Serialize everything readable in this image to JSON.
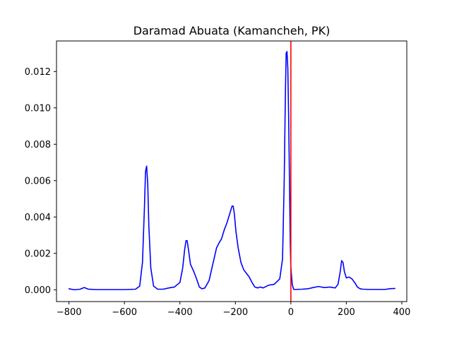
{
  "chart_data": {
    "type": "line",
    "title": "Daramad Abuata (Kamancheh, PK)",
    "xlabel": "",
    "ylabel": "",
    "xlim": [
      -845,
      418
    ],
    "ylim": [
      -0.00065,
      0.01368
    ],
    "grid": false,
    "x_ticks": [
      -800,
      -600,
      -400,
      -200,
      0,
      200,
      400
    ],
    "x_tick_labels": [
      "−800",
      "−600",
      "−400",
      "−200",
      "0",
      "200",
      "400"
    ],
    "y_ticks": [
      0.0,
      0.002,
      0.004,
      0.006,
      0.008,
      0.01,
      0.012
    ],
    "y_tick_labels": [
      "0.000",
      "0.002",
      "0.004",
      "0.006",
      "0.008",
      "0.010",
      "0.012"
    ],
    "series": [
      {
        "color": "#0000ff",
        "x": [
          -800,
          -780,
          -760,
          -745,
          -730,
          -700,
          -650,
          -600,
          -560,
          -545,
          -535,
          -528,
          -524,
          -520,
          -516,
          -512,
          -505,
          -495,
          -480,
          -460,
          -440,
          -420,
          -400,
          -390,
          -383,
          -378,
          -374,
          -370,
          -362,
          -350,
          -340,
          -330,
          -320,
          -310,
          -295,
          -280,
          -268,
          -258,
          -250,
          -240,
          -230,
          -220,
          -212,
          -208,
          -204,
          -198,
          -190,
          -180,
          -170,
          -160,
          -150,
          -140,
          -130,
          -120,
          -110,
          -100,
          -80,
          -60,
          -40,
          -30,
          -24,
          -20,
          -17,
          -14,
          -11,
          -8,
          -5,
          -2,
          0,
          5,
          10,
          20,
          40,
          60,
          80,
          100,
          120,
          140,
          160,
          170,
          178,
          183,
          188,
          193,
          200,
          210,
          220,
          230,
          240,
          250,
          260,
          280,
          300,
          320,
          340,
          360,
          375
        ],
        "y": [
          5e-05,
          0.0,
          3e-05,
          0.00012,
          3e-05,
          1e-05,
          1e-05,
          1e-05,
          3e-05,
          0.0002,
          0.0015,
          0.0045,
          0.0065,
          0.0068,
          0.0058,
          0.0035,
          0.0012,
          0.0002,
          3e-05,
          3e-05,
          0.0001,
          0.00015,
          0.0004,
          0.0012,
          0.0022,
          0.0027,
          0.0027,
          0.0023,
          0.0014,
          0.001,
          0.0006,
          0.00015,
          5e-05,
          0.0001,
          0.0005,
          0.0015,
          0.0023,
          0.0026,
          0.0028,
          0.0033,
          0.0037,
          0.0042,
          0.0046,
          0.0046,
          0.0042,
          0.0032,
          0.0023,
          0.0015,
          0.0011,
          0.0009,
          0.0007,
          0.0004,
          0.00015,
          0.0001,
          0.00015,
          0.0001,
          0.00025,
          0.0003,
          0.0006,
          0.0017,
          0.006,
          0.0105,
          0.013,
          0.0131,
          0.0122,
          0.0095,
          0.006,
          0.0025,
          0.0012,
          0.0003,
          2e-05,
          2e-05,
          3e-05,
          5e-05,
          0.00012,
          0.00018,
          0.00012,
          0.00015,
          0.0001,
          0.0003,
          0.001,
          0.0016,
          0.0015,
          0.001,
          0.00065,
          0.0007,
          0.0006,
          0.0004,
          0.00015,
          5e-05,
          3e-05,
          2e-05,
          2e-05,
          2e-05,
          2e-05,
          6e-05,
          7e-05
        ]
      }
    ],
    "vertical_line": {
      "x": 0,
      "color": "#ff0000"
    }
  }
}
